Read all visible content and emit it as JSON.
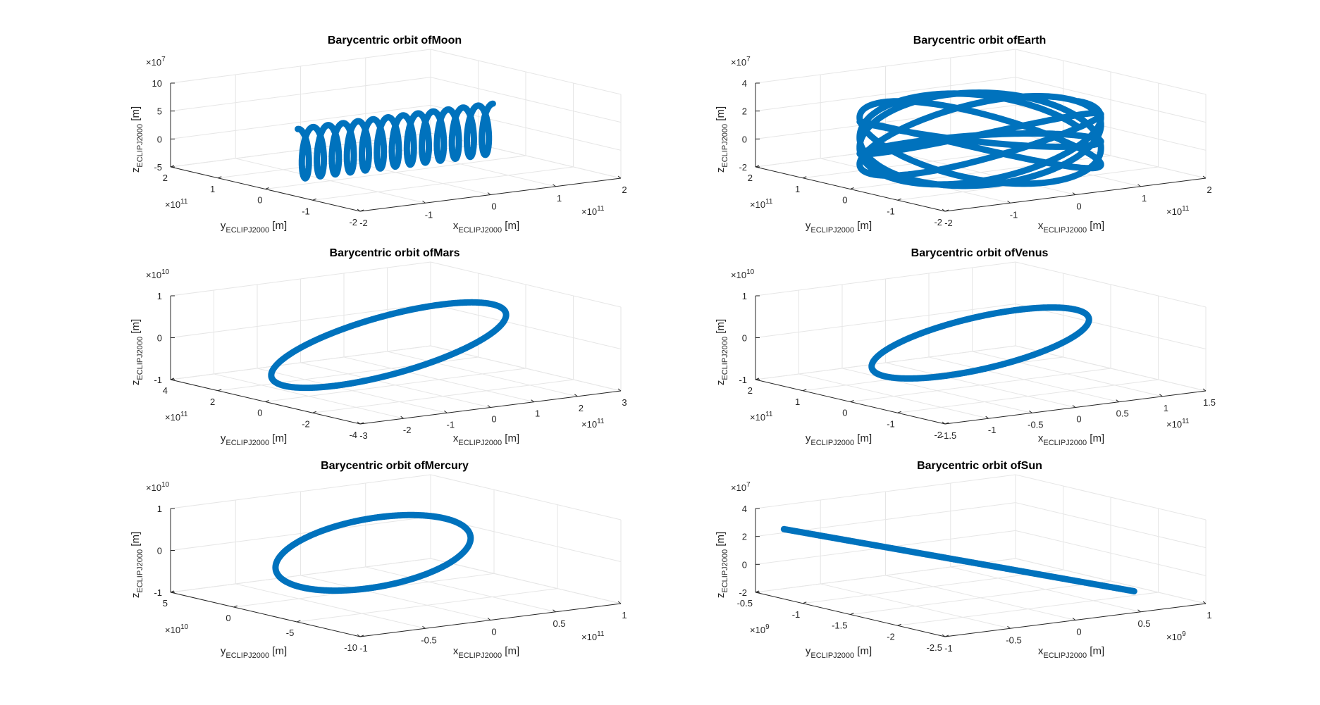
{
  "colors": {
    "series": "#0072bd",
    "grid": "#e6e6e6",
    "axis": "#262626"
  },
  "chart_data": [
    {
      "type": "line",
      "title": "Barycentric orbit ofMoon",
      "xlabel": {
        "base": "x",
        "sub": "ECLIPJ2000",
        "unit": " [m]"
      },
      "ylabel": {
        "base": "y",
        "sub": "ECLIPJ2000",
        "unit": " [m]"
      },
      "zlabel": {
        "base": "z",
        "sub": "ECLIPJ2000",
        "unit": " [m]"
      },
      "x_ticks": [
        "-2",
        "-1",
        "0",
        "1",
        "2"
      ],
      "x_exp": "11",
      "y_ticks": [
        "2",
        "1",
        "0",
        "-1",
        "-2"
      ],
      "y_exp": "11",
      "z_ticks": [
        "10",
        "5",
        "0",
        "-5"
      ],
      "z_exp": "7",
      "xlim": [
        -200000000000.0,
        200000000000.0
      ],
      "ylim": [
        -200000000000.0,
        200000000000.0
      ],
      "zlim": [
        -50000000.0,
        100000000.0
      ],
      "grid": true,
      "shape": "helix",
      "series": [
        {
          "x": [
            -150000000000.0,
            150000000000.0
          ],
          "y": [
            0.0,
            0.0
          ],
          "z": [
            -40000000.0,
            50000000.0
          ],
          "loops": 13
        }
      ]
    },
    {
      "type": "line",
      "title": "Barycentric orbit ofEarth",
      "xlabel": {
        "base": "x",
        "sub": "ECLIPJ2000",
        "unit": " [m]"
      },
      "ylabel": {
        "base": "y",
        "sub": "ECLIPJ2000",
        "unit": " [m]"
      },
      "zlabel": {
        "base": "z",
        "sub": "ECLIPJ2000",
        "unit": " [m]"
      },
      "x_ticks": [
        "-2",
        "-1",
        "0",
        "1",
        "2"
      ],
      "x_exp": "11",
      "y_ticks": [
        "2",
        "1",
        "0",
        "-1",
        "-2"
      ],
      "y_exp": "11",
      "z_ticks": [
        "4",
        "2",
        "0",
        "-2"
      ],
      "z_exp": "7",
      "xlim": [
        -200000000000.0,
        200000000000.0
      ],
      "ylim": [
        -200000000000.0,
        200000000000.0
      ],
      "zlim": [
        -20000000.0,
        40000000.0
      ],
      "grid": true,
      "shape": "rings",
      "series": [
        {
          "x": [
            -150000000000.0,
            150000000000.0
          ],
          "y": [
            -150000000000.0,
            150000000000.0
          ],
          "z": [
            -15000000.0,
            22000000.0
          ],
          "loops": 6
        }
      ]
    },
    {
      "type": "line",
      "title": "Barycentric orbit ofMars",
      "xlabel": {
        "base": "x",
        "sub": "ECLIPJ2000",
        "unit": " [m]"
      },
      "ylabel": {
        "base": "y",
        "sub": "ECLIPJ2000",
        "unit": " [m]"
      },
      "zlabel": {
        "base": "z",
        "sub": "ECLIPJ2000",
        "unit": " [m]"
      },
      "x_ticks": [
        "-3",
        "-2",
        "-1",
        "0",
        "1",
        "2",
        "3"
      ],
      "x_exp": "11",
      "y_ticks": [
        "4",
        "2",
        "0",
        "-2",
        "-4"
      ],
      "y_exp": "11",
      "z_ticks": [
        "1",
        "0",
        "-1"
      ],
      "z_exp": "10",
      "xlim": [
        -300000000000.0,
        300000000000.0
      ],
      "ylim": [
        -400000000000.0,
        400000000000.0
      ],
      "zlim": [
        -10000000000.0,
        10000000000.0
      ],
      "grid": true,
      "shape": "ellipse",
      "series": [
        {
          "x": [
            -250000000000.0,
            230000000000.0
          ],
          "y": [
            -220000000000.0,
            240000000000.0
          ],
          "z": [
            -7000000000.0,
            6000000000.0
          ],
          "loops": 1
        }
      ]
    },
    {
      "type": "line",
      "title": "Barycentric orbit ofVenus",
      "xlabel": {
        "base": "x",
        "sub": "ECLIPJ2000",
        "unit": " [m]"
      },
      "ylabel": {
        "base": "y",
        "sub": "ECLIPJ2000",
        "unit": " [m]"
      },
      "zlabel": {
        "base": "z",
        "sub": "ECLIPJ2000",
        "unit": " [m]"
      },
      "x_ticks": [
        "-1.5",
        "-1",
        "-0.5",
        "0",
        "0.5",
        "1",
        "1.5"
      ],
      "x_exp": "11",
      "y_ticks": [
        "2",
        "1",
        "0",
        "-1",
        "-2"
      ],
      "y_exp": "11",
      "z_ticks": [
        "1",
        "0",
        "-1"
      ],
      "z_exp": "10",
      "xlim": [
        -150000000000.0,
        150000000000.0
      ],
      "ylim": [
        -200000000000.0,
        200000000000.0
      ],
      "zlim": [
        -10000000000.0,
        10000000000.0
      ],
      "grid": true,
      "shape": "ellipse",
      "series": [
        {
          "x": [
            -110000000000.0,
            110000000000.0
          ],
          "y": [
            -110000000000.0,
            110000000000.0
          ],
          "z": [
            -5000000000.0,
            5000000000.0
          ],
          "loops": 1
        }
      ]
    },
    {
      "type": "line",
      "title": "Barycentric orbit ofMercury",
      "xlabel": {
        "base": "x",
        "sub": "ECLIPJ2000",
        "unit": " [m]"
      },
      "ylabel": {
        "base": "y",
        "sub": "ECLIPJ2000",
        "unit": " [m]"
      },
      "zlabel": {
        "base": "z",
        "sub": "ECLIPJ2000",
        "unit": " [m]"
      },
      "x_ticks": [
        "-1",
        "-0.5",
        "0",
        "0.5",
        "1"
      ],
      "x_exp": "11",
      "y_ticks": [
        "5",
        "0",
        "-5",
        "-10"
      ],
      "y_exp": "10",
      "z_ticks": [
        "1",
        "0",
        "-1"
      ],
      "z_exp": "10",
      "xlim": [
        -100000000000.0,
        100000000000.0
      ],
      "ylim": [
        -100000000000.0,
        50000000000.0
      ],
      "zlim": [
        -10000000000.0,
        10000000000.0
      ],
      "grid": true,
      "shape": "ellipse",
      "series": [
        {
          "x": [
            -60000000000.0,
            50000000000.0
          ],
          "y": [
            -65000000000.0,
            40000000000.0
          ],
          "z": [
            -6000000000.0,
            6000000000.0
          ],
          "loops": 1
        }
      ]
    },
    {
      "type": "line",
      "title": "Barycentric orbit ofSun",
      "xlabel": {
        "base": "x",
        "sub": "ECLIPJ2000",
        "unit": " [m]"
      },
      "ylabel": {
        "base": "y",
        "sub": "ECLIPJ2000",
        "unit": " [m]"
      },
      "zlabel": {
        "base": "z",
        "sub": "ECLIPJ2000",
        "unit": " [m]"
      },
      "x_ticks": [
        "-1",
        "-0.5",
        "0",
        "0.5",
        "1"
      ],
      "x_exp": "9",
      "y_ticks": [
        "-0.5",
        "-1",
        "-1.5",
        "-2",
        "-2.5"
      ],
      "y_exp": "9",
      "z_ticks": [
        "4",
        "2",
        "0",
        "-2"
      ],
      "z_exp": "7",
      "xlim": [
        -1000000000.0,
        1000000000.0
      ],
      "ylim": [
        -2500000000.0,
        -500000000.0
      ],
      "zlim": [
        -20000000.0,
        40000000.0
      ],
      "grid": true,
      "shape": "line",
      "series": [
        {
          "x": [
            -1000000000.0,
            600000000.0
          ],
          "y": [
            -800000000.0,
            -2300000000.0
          ],
          "z": [
            30000000.0,
            -10000000.0
          ],
          "loops": 0
        }
      ]
    }
  ]
}
